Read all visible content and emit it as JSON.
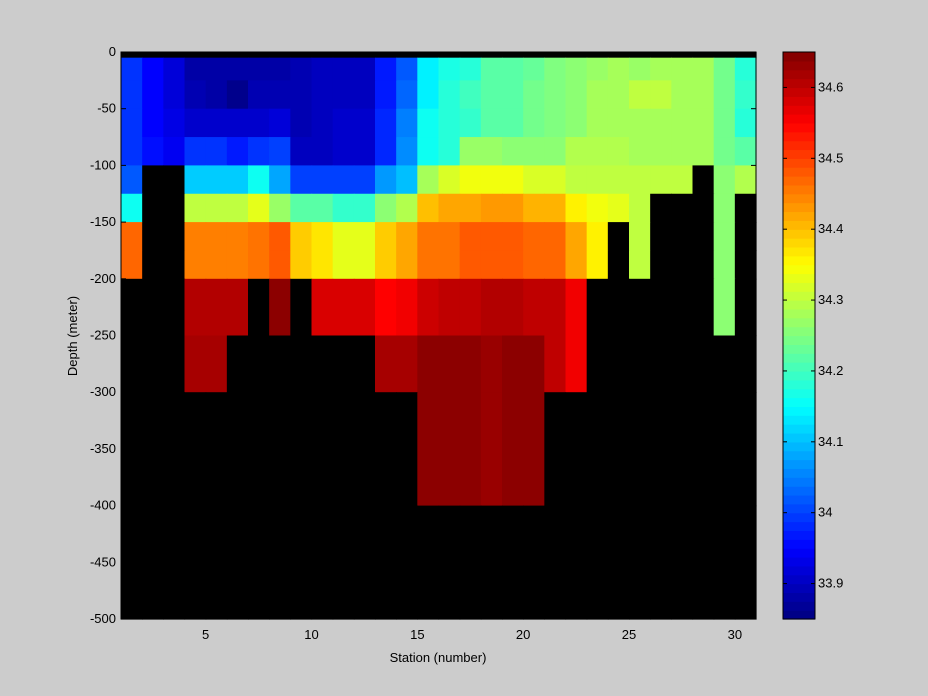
{
  "chart_data": {
    "type": "heatmap",
    "title": "",
    "xlabel": "Station (number)",
    "ylabel": "Depth (meter)",
    "xlim": [
      1,
      31
    ],
    "ylim": [
      -500,
      0
    ],
    "x_ticks": [
      5,
      10,
      15,
      20,
      25,
      30
    ],
    "y_ticks": [
      0,
      -50,
      -100,
      -150,
      -200,
      -250,
      -300,
      -350,
      -400,
      -450,
      -500
    ],
    "colorbar": {
      "range": [
        33.85,
        34.65
      ],
      "ticks": [
        33.9,
        34,
        34.1,
        34.2,
        34.3,
        34.4,
        34.5,
        34.6
      ],
      "colormap": "jet"
    },
    "no_data_color": "#000000",
    "background_color": "#cccccc",
    "stations": [
      1,
      2,
      3,
      4,
      5,
      6,
      7,
      8,
      9,
      10,
      11,
      12,
      13,
      14,
      15,
      16,
      17,
      18,
      19,
      20,
      21,
      22,
      23,
      24,
      25,
      26,
      27,
      28,
      29,
      30
    ],
    "depth_rows": [
      {
        "top": 0,
        "bottom": -5,
        "values": [
          null,
          null,
          null,
          null,
          null,
          null,
          null,
          null,
          null,
          null,
          null,
          null,
          null,
          null,
          null,
          null,
          null,
          null,
          null,
          null,
          null,
          null,
          null,
          null,
          null,
          null,
          null,
          null,
          null,
          null
        ]
      },
      {
        "top": -5,
        "bottom": -25,
        "values": [
          33.99,
          33.95,
          33.92,
          33.88,
          33.88,
          33.88,
          33.88,
          33.88,
          33.89,
          33.9,
          33.9,
          33.9,
          33.97,
          34.02,
          34.14,
          34.17,
          34.18,
          34.22,
          34.22,
          34.23,
          34.25,
          34.26,
          34.27,
          34.28,
          34.27,
          34.28,
          34.28,
          34.28,
          34.24,
          34.18
        ]
      },
      {
        "top": -25,
        "bottom": -50,
        "values": [
          33.99,
          33.95,
          33.92,
          33.89,
          33.88,
          33.86,
          33.89,
          33.89,
          33.89,
          33.9,
          33.9,
          33.9,
          33.97,
          34.03,
          34.14,
          34.18,
          34.2,
          34.22,
          34.22,
          34.24,
          34.25,
          34.26,
          34.28,
          34.28,
          34.3,
          34.3,
          34.28,
          34.28,
          34.24,
          34.19
        ]
      },
      {
        "top": -50,
        "bottom": -75,
        "values": [
          33.99,
          33.95,
          33.93,
          33.91,
          33.91,
          33.91,
          33.91,
          33.92,
          33.89,
          33.9,
          33.91,
          33.91,
          33.98,
          34.05,
          34.16,
          34.18,
          34.19,
          34.22,
          34.22,
          34.24,
          34.25,
          34.26,
          34.28,
          34.28,
          34.28,
          34.28,
          34.28,
          34.28,
          34.24,
          34.18
        ]
      },
      {
        "top": -75,
        "bottom": -100,
        "values": [
          33.99,
          33.96,
          33.94,
          33.99,
          33.99,
          33.97,
          33.99,
          34.0,
          33.9,
          33.9,
          33.91,
          33.91,
          33.98,
          34.06,
          34.16,
          34.18,
          34.27,
          34.27,
          34.26,
          34.26,
          34.26,
          34.29,
          34.29,
          34.29,
          34.28,
          34.28,
          34.28,
          34.28,
          34.24,
          34.22
        ]
      },
      {
        "top": -100,
        "bottom": -125,
        "values": [
          34.02,
          null,
          null,
          34.11,
          34.11,
          34.11,
          34.16,
          34.08,
          34.0,
          34.0,
          34.0,
          34.0,
          34.07,
          34.1,
          34.28,
          34.32,
          34.34,
          34.34,
          34.34,
          34.32,
          34.32,
          34.3,
          34.3,
          34.3,
          34.3,
          34.3,
          34.3,
          null,
          34.26,
          34.29
        ]
      },
      {
        "top": -125,
        "bottom": -150,
        "values": [
          34.16,
          null,
          null,
          34.3,
          34.3,
          34.3,
          34.33,
          34.27,
          34.22,
          34.22,
          34.19,
          34.19,
          34.26,
          34.29,
          34.4,
          34.42,
          34.42,
          34.43,
          34.43,
          34.41,
          34.41,
          34.36,
          34.34,
          34.33,
          34.3,
          null,
          null,
          null,
          34.26,
          null
        ]
      },
      {
        "top": -150,
        "bottom": -175,
        "values": [
          34.47,
          null,
          null,
          34.45,
          34.45,
          34.45,
          34.46,
          34.48,
          34.39,
          34.37,
          34.33,
          34.33,
          34.39,
          34.42,
          34.46,
          34.46,
          34.48,
          34.48,
          34.48,
          34.47,
          34.47,
          34.42,
          34.36,
          null,
          34.3,
          null,
          null,
          null,
          34.26,
          null
        ]
      },
      {
        "top": -175,
        "bottom": -200,
        "values": [
          34.47,
          null,
          null,
          34.45,
          34.45,
          34.45,
          34.46,
          34.48,
          34.39,
          34.37,
          34.33,
          34.33,
          34.39,
          34.42,
          34.46,
          34.46,
          34.48,
          34.48,
          34.48,
          34.47,
          34.47,
          34.42,
          34.36,
          null,
          34.3,
          null,
          null,
          null,
          34.26,
          null
        ]
      },
      {
        "top": -200,
        "bottom": -250,
        "values": [
          null,
          null,
          null,
          34.61,
          34.61,
          34.61,
          null,
          34.64,
          null,
          34.58,
          34.58,
          34.58,
          34.55,
          34.56,
          34.59,
          34.6,
          34.6,
          34.61,
          34.61,
          34.6,
          34.6,
          34.56,
          null,
          null,
          null,
          null,
          null,
          null,
          34.26,
          null
        ]
      },
      {
        "top": -250,
        "bottom": -300,
        "values": [
          null,
          null,
          null,
          34.62,
          34.62,
          null,
          null,
          null,
          null,
          null,
          null,
          null,
          34.62,
          34.62,
          34.64,
          34.64,
          34.64,
          34.63,
          34.64,
          34.64,
          34.6,
          34.56,
          null,
          null,
          null,
          null,
          null,
          null,
          null,
          null
        ]
      },
      {
        "top": -300,
        "bottom": -400,
        "values": [
          null,
          null,
          null,
          null,
          null,
          null,
          null,
          null,
          null,
          null,
          null,
          null,
          null,
          null,
          34.64,
          34.64,
          34.64,
          34.63,
          34.64,
          34.64,
          null,
          null,
          null,
          null,
          null,
          null,
          null,
          null,
          null,
          null
        ]
      },
      {
        "top": -400,
        "bottom": -500,
        "values": [
          null,
          null,
          null,
          null,
          null,
          null,
          null,
          null,
          null,
          null,
          null,
          null,
          null,
          null,
          null,
          null,
          null,
          null,
          null,
          null,
          null,
          null,
          null,
          null,
          null,
          null,
          null,
          null,
          null,
          null
        ]
      }
    ]
  }
}
